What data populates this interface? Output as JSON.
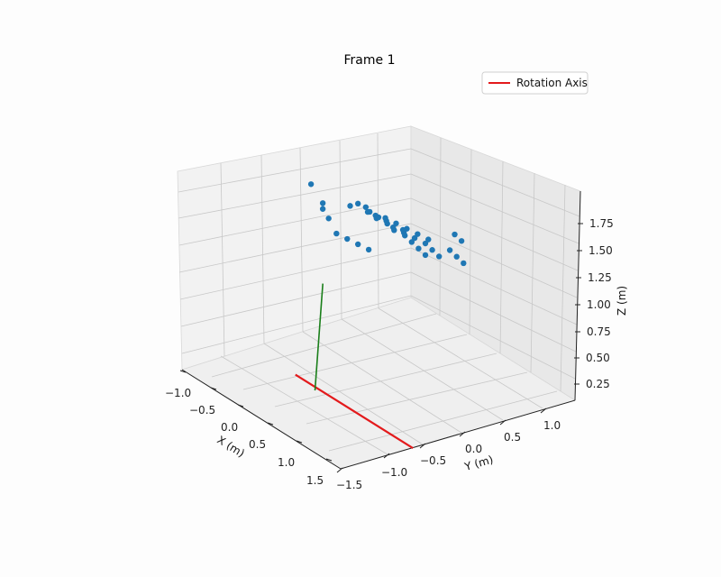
{
  "chart_data": {
    "type": "scatter",
    "title": "Frame 1",
    "legend": {
      "entries": [
        "Rotation Axis"
      ],
      "placement": "top-right"
    },
    "axes": {
      "x": {
        "label": "X (m)",
        "ticks": [
          "−1.0",
          "−0.5",
          "0.0",
          "0.5",
          "1.0",
          "1.5"
        ],
        "range": [
          -1.0,
          1.7
        ]
      },
      "y": {
        "label": "Y (m)",
        "ticks": [
          "−1.5",
          "−1.0",
          "−0.5",
          "0.0",
          "0.5",
          "1.0"
        ],
        "range": [
          -1.6,
          1.4
        ]
      },
      "z": {
        "label": "Z (m)",
        "ticks": [
          "0.25",
          "0.50",
          "0.75",
          "1.00",
          "1.25",
          "1.50",
          "1.75"
        ],
        "range": [
          0.15,
          1.95
        ]
      }
    },
    "grid": true,
    "series": [
      {
        "name": "Rotation Axis",
        "kind": "line",
        "color": "#e31a1c",
        "points": [
          [
            1.6,
            -0.6,
            0.1
          ],
          [
            -0.4,
            -0.6,
            0.1
          ]
        ]
      },
      {
        "kind": "line",
        "color": "#1a7f1a",
        "points": [
          [
            0.0,
            -0.65,
            0.1
          ],
          [
            0.0,
            -0.55,
            1.0
          ]
        ]
      },
      {
        "kind": "scatter",
        "color": "#1f77b4",
        "description": "point cloud",
        "points": [
          [
            -0.4,
            -0.4,
            1.7
          ],
          [
            -0.2,
            -0.4,
            1.6
          ],
          [
            -0.2,
            -0.4,
            1.55
          ],
          [
            -0.1,
            -0.4,
            1.5
          ],
          [
            0.0,
            -0.2,
            1.6
          ],
          [
            0.0,
            -0.1,
            1.6
          ],
          [
            0.0,
            0.0,
            1.55
          ],
          [
            0.1,
            0.05,
            1.5
          ],
          [
            0.15,
            0.15,
            1.45
          ],
          [
            0.2,
            0.2,
            1.4
          ],
          [
            0.25,
            0.3,
            1.35
          ],
          [
            0.3,
            0.4,
            1.3
          ],
          [
            0.35,
            0.5,
            1.25
          ],
          [
            0.4,
            0.55,
            1.2
          ],
          [
            0.45,
            0.6,
            1.15
          ],
          [
            0.0,
            0.05,
            1.5
          ],
          [
            0.05,
            0.1,
            1.45
          ],
          [
            0.1,
            0.2,
            1.4
          ],
          [
            0.15,
            0.25,
            1.35
          ],
          [
            0.2,
            0.35,
            1.3
          ],
          [
            0.25,
            0.4,
            1.25
          ],
          [
            0.3,
            0.45,
            1.2
          ],
          [
            0.35,
            0.5,
            1.15
          ],
          [
            -0.1,
            -0.3,
            1.35
          ],
          [
            -0.05,
            -0.2,
            1.3
          ],
          [
            0.0,
            -0.1,
            1.25
          ],
          [
            0.05,
            0.0,
            1.2
          ],
          [
            0.3,
            0.3,
            1.4
          ],
          [
            0.35,
            0.4,
            1.35
          ],
          [
            0.4,
            0.5,
            1.3
          ],
          [
            0.2,
            0.1,
            1.5
          ],
          [
            0.25,
            0.2,
            1.45
          ],
          [
            0.3,
            0.25,
            1.4
          ],
          [
            0.1,
            -0.05,
            1.55
          ],
          [
            0.15,
            0.05,
            1.5
          ],
          [
            0.5,
            0.7,
            1.2
          ],
          [
            0.55,
            0.75,
            1.15
          ],
          [
            0.6,
            0.8,
            1.1
          ],
          [
            0.45,
            0.8,
            1.3
          ],
          [
            0.5,
            0.85,
            1.25
          ]
        ]
      }
    ]
  }
}
